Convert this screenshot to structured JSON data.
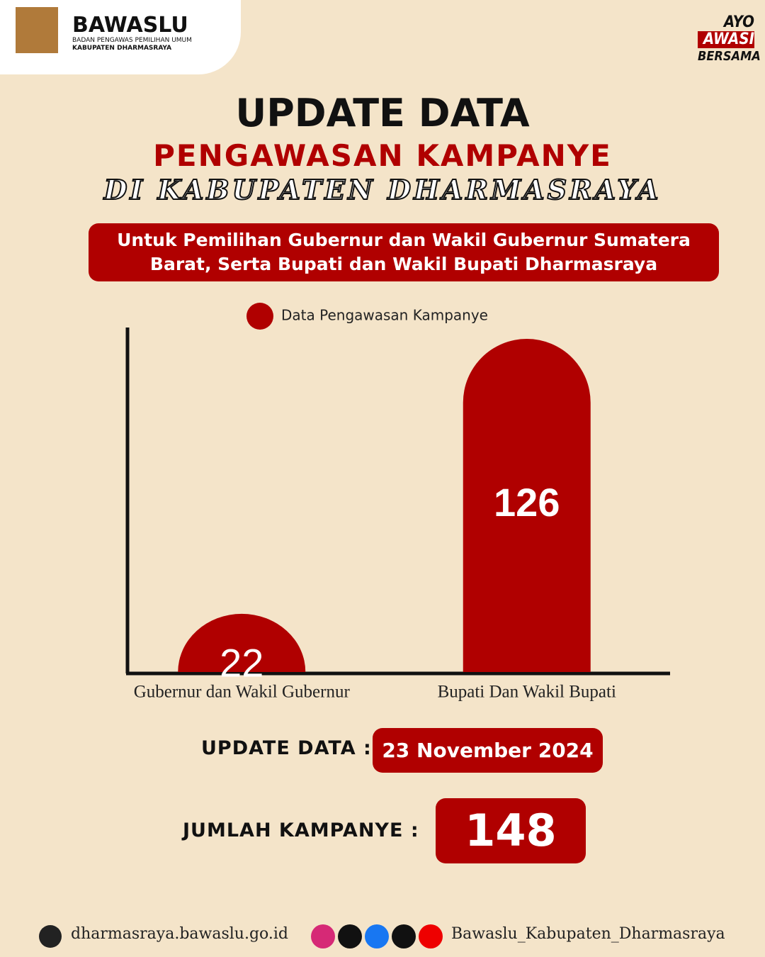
{
  "header": {
    "logo_title": "BAWASLU",
    "logo_line1": "BADAN PENGAWAS PEMILIHAN UMUM",
    "logo_line2": "KABUPATEN DHARMASRAYA",
    "badge": [
      "AYO",
      "AWASI",
      "BERSAMA"
    ]
  },
  "title": "UPDATE DATA",
  "subtitle": "PENGAWASAN KAMPANYE",
  "subtitle2": "DI KABUPATEN DHARMASRAYA",
  "description": "Untuk Pemilihan Gubernur dan Wakil Gubernur Sumatera Barat, Serta Bupati dan Wakil Bupati Dharmasraya",
  "chart_data": {
    "type": "bar",
    "categories": [
      "Gubernur dan Wakil Gubernur",
      "Bupati Dan Wakil Bupati"
    ],
    "series": [
      {
        "name": "Data Pengawasan Kampanye",
        "color": "#b00000",
        "values": [
          22,
          126
        ]
      }
    ]
  },
  "summary": {
    "update_label": "UPDATE DATA :",
    "update_date": "23 November 2024",
    "total_label": "JUMLAH KAMPANYE :",
    "total": 148
  },
  "footer": {
    "website": "dharmasraya.bawaslu.go.id",
    "social": "Bawaslu_Kabupaten_Dharmasraya"
  }
}
